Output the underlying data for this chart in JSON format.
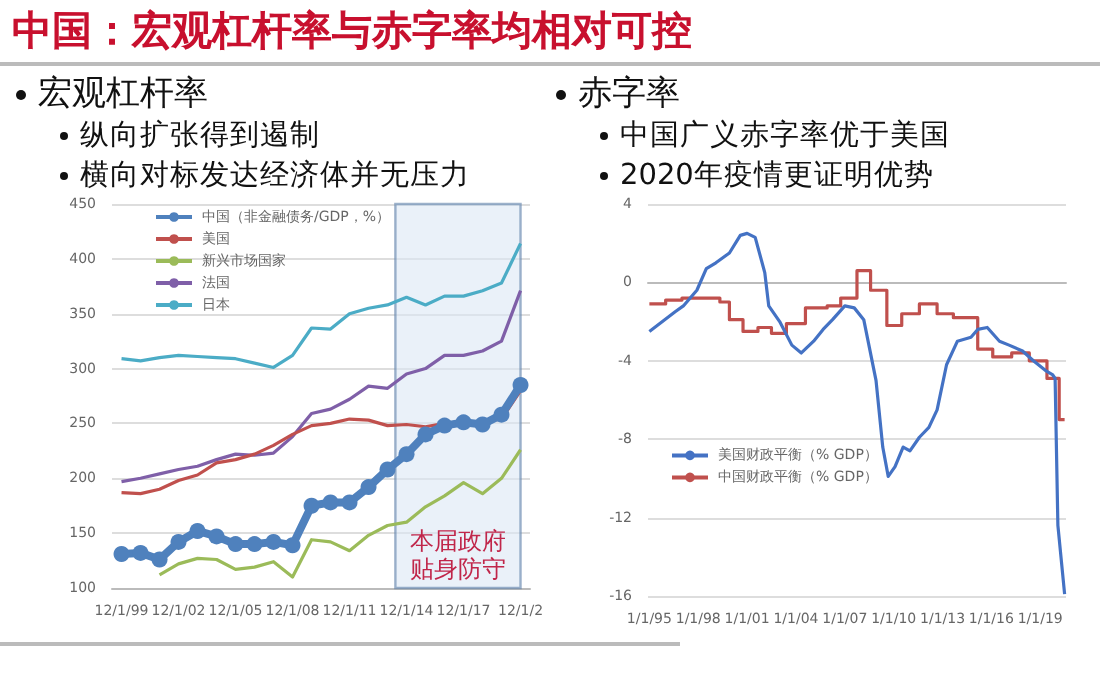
{
  "chart_data": [
    {
      "type": "line",
      "title": "中国：宏观杠杆率与赤字率均相对可控",
      "annotations": [
        "宏观杠杆率",
        "纵向扩张得到遏制",
        "横向对标发达经济体并无压力"
      ],
      "x": [
        "1999-12-01",
        "2000-12-01",
        "2001-12-01",
        "2002-12-01",
        "2003-12-01",
        "2004-12-01",
        "2005-12-01",
        "2006-12-01",
        "2007-12-01",
        "2008-12-01",
        "2009-12-01",
        "2010-12-01",
        "2011-12-01",
        "2012-12-01",
        "2013-12-01",
        "2014-12-01",
        "2015-12-01",
        "2016-12-01",
        "2017-12-01",
        "2018-12-01",
        "2019-12-01",
        "2020-12-01"
      ],
      "xlim": [
        "1999-06-01",
        "2021-06-01"
      ],
      "xticks": [
        {
          "value": "1999-12-01",
          "label": "12/1/99"
        },
        {
          "value": "2002-12-01",
          "label": "12/1/02"
        },
        {
          "value": "2005-12-01",
          "label": "12/1/05"
        },
        {
          "value": "2008-12-01",
          "label": "12/1/08"
        },
        {
          "value": "2011-12-01",
          "label": "12/1/11"
        },
        {
          "value": "2014-12-01",
          "label": "12/1/14"
        },
        {
          "value": "2017-12-01",
          "label": "12/1/17"
        },
        {
          "value": "2020-12-01",
          "label": "12/1/2"
        }
      ],
      "ylim": [
        100,
        450
      ],
      "yticks": [
        100,
        150,
        200,
        250,
        300,
        350,
        400,
        450
      ],
      "grid": "y",
      "legend": "top left",
      "series": [
        {
          "name": "中国（非金融债务/GDP，%）",
          "color": "#4f81bd",
          "marker": "circle",
          "values": [
            131,
            132,
            126,
            142,
            152,
            147,
            140,
            140,
            142,
            139,
            175,
            178,
            178,
            192,
            208,
            222,
            240,
            248,
            251,
            249,
            258,
            285
          ]
        },
        {
          "name": "美国",
          "color": "#c0504d",
          "values": [
            187,
            186,
            190,
            198,
            203,
            214,
            217,
            222,
            230,
            240,
            248,
            250,
            254,
            253,
            248,
            249,
            247,
            250,
            250,
            252,
            254,
            280
          ]
        },
        {
          "name": "新兴市场国家",
          "color": "#9bbb59",
          "values": [
            null,
            null,
            112,
            122,
            127,
            126,
            117,
            119,
            124,
            110,
            144,
            142,
            134,
            148,
            157,
            160,
            174,
            184,
            196,
            186,
            200,
            226
          ]
        },
        {
          "name": "法国",
          "color": "#7f5fa8",
          "values": [
            197,
            200,
            204,
            208,
            211,
            217,
            222,
            221,
            223,
            238,
            259,
            263,
            272,
            284,
            282,
            295,
            300,
            312,
            312,
            316,
            325,
            371
          ]
        },
        {
          "name": "日本",
          "color": "#4bacc6",
          "values": [
            309,
            307,
            310,
            312,
            311,
            310,
            309,
            305,
            301,
            312,
            337,
            336,
            350,
            355,
            358,
            365,
            358,
            366,
            366,
            371,
            378,
            414
          ]
        }
      ],
      "bands": [
        {
          "axis": "x",
          "from": "2014-05",
          "to": "2020-12",
          "label": "本届政府贴身防守",
          "color": "#dce8f5"
        }
      ]
    },
    {
      "type": "line",
      "annotations": [
        "赤字率",
        "中国广义赤字率优于美国",
        "2020年疫情更证明优势"
      ],
      "xlim": [
        "1994-12",
        "2020-08"
      ],
      "xticks": [
        {
          "value": "1995-01-01",
          "label": "1/1/95"
        },
        {
          "value": "1998-01-01",
          "label": "1/1/98"
        },
        {
          "value": "2001-01-01",
          "label": "1/1/01"
        },
        {
          "value": "2004-01-01",
          "label": "1/1/04"
        },
        {
          "value": "2007-01-01",
          "label": "1/1/07"
        },
        {
          "value": "2010-01-01",
          "label": "1/1/10"
        },
        {
          "value": "2013-01-01",
          "label": "1/1/13"
        },
        {
          "value": "2016-01-01",
          "label": "1/1/16"
        },
        {
          "value": "2019-01-01",
          "label": "1/1/19"
        }
      ],
      "ylim": [
        -16,
        4
      ],
      "yticks": [
        -16,
        -12,
        -8,
        -4,
        0,
        4
      ],
      "grid": "y",
      "legend": "left",
      "series": [
        {
          "name": "美国财政平衡（% GDP）",
          "color": "#4472c4",
          "x": [
            "1995-01",
            "1996-08",
            "1997-02",
            "1997-12",
            "1998-07",
            "1999-02",
            "1999-12",
            "2000-08",
            "2001-01",
            "2001-07",
            "2002-02",
            "2002-05",
            "2003-01",
            "2003-10",
            "2004-05",
            "2005-02",
            "2005-09",
            "2006-04",
            "2007-01",
            "2007-08",
            "2008-03",
            "2008-12",
            "2009-05",
            "2009-09",
            "2010-02",
            "2010-08",
            "2011-01",
            "2011-08",
            "2012-03",
            "2012-09",
            "2013-04",
            "2013-12",
            "2014-10",
            "2015-03",
            "2015-10",
            "2016-07",
            "2017-02",
            "2017-12",
            "2018-08",
            "2019-05",
            "2019-10",
            "2019-12",
            "2020-02",
            "2020-07"
          ],
          "values": [
            -2.5,
            -1.5,
            -1.2,
            -0.4,
            0.7,
            1.0,
            1.5,
            2.4,
            2.5,
            2.3,
            0.5,
            -1.2,
            -2.0,
            -3.2,
            -3.6,
            -3.0,
            -2.4,
            -1.9,
            -1.2,
            -1.3,
            -1.9,
            -5.0,
            -8.4,
            -9.9,
            -9.4,
            -8.4,
            -8.6,
            -7.9,
            -7.4,
            -6.5,
            -4.2,
            -3.0,
            -2.8,
            -2.4,
            -2.3,
            -3.0,
            -3.2,
            -3.5,
            -4.0,
            -4.5,
            -4.7,
            -4.9,
            -12.4,
            -15.9
          ]
        },
        {
          "name": "中国财政平衡（% GDP）",
          "color": "#c0504d",
          "type": "step",
          "x": [
            "1995-01",
            "1996-01",
            "1997-01",
            "1999-05",
            "1999-12",
            "2000-10",
            "2001-09",
            "2002-07",
            "2003-06",
            "2004-08",
            "2005-12",
            "2006-10",
            "2007-10",
            "2008-08",
            "2009-08",
            "2010-07",
            "2011-08",
            "2012-09",
            "2013-09",
            "2015-03",
            "2016-02",
            "2017-04",
            "2018-05",
            "2019-06",
            "2020-03",
            "2020-07"
          ],
          "values": [
            -1.1,
            -0.9,
            -0.8,
            -1.0,
            -1.9,
            -2.5,
            -2.3,
            -2.6,
            -2.1,
            -1.3,
            -1.2,
            -0.8,
            0.6,
            -0.4,
            -2.2,
            -1.6,
            -1.1,
            -1.6,
            -1.8,
            -3.4,
            -3.8,
            -3.6,
            -4.0,
            -4.9,
            -7.0,
            -7.0
          ]
        }
      ]
    }
  ]
}
